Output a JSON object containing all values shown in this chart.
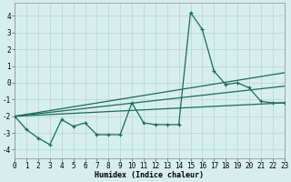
{
  "xlabel": "Humidex (Indice chaleur)",
  "bg_color": "#d6eeee",
  "grid_color": "#b8d4d4",
  "line_color": "#1a6b5a",
  "xlim": [
    0,
    23
  ],
  "ylim": [
    -4.5,
    4.8
  ],
  "xticks": [
    0,
    1,
    2,
    3,
    4,
    5,
    6,
    7,
    8,
    9,
    10,
    11,
    12,
    13,
    14,
    15,
    16,
    17,
    18,
    19,
    20,
    21,
    22,
    23
  ],
  "yticks": [
    -4,
    -3,
    -2,
    -1,
    0,
    1,
    2,
    3,
    4
  ],
  "series1_x": [
    0,
    1,
    2,
    3,
    4,
    5,
    6,
    7,
    8,
    9,
    10,
    11,
    12,
    13,
    14,
    15,
    16,
    17,
    18,
    19,
    20,
    21,
    22,
    23
  ],
  "series1_y": [
    -2.0,
    -2.8,
    -3.3,
    -3.7,
    -2.2,
    -2.6,
    -2.4,
    -3.1,
    -3.1,
    -3.1,
    -1.2,
    -2.4,
    -2.5,
    -2.5,
    -2.5,
    4.2,
    3.2,
    0.7,
    -0.1,
    0.0,
    -0.3,
    -1.1,
    -1.2,
    -1.2
  ],
  "line1_x0": 0,
  "line1_y0": -2.0,
  "line1_x1": 23,
  "line1_y1": -1.2,
  "line2_x0": 0,
  "line2_y0": -2.0,
  "line2_x1": 23,
  "line2_y1": -0.2,
  "line3_x0": 0,
  "line3_y0": -2.0,
  "line3_x1": 23,
  "line3_y1": 0.6,
  "xlabel_fontsize": 6,
  "tick_fontsize": 5.5
}
